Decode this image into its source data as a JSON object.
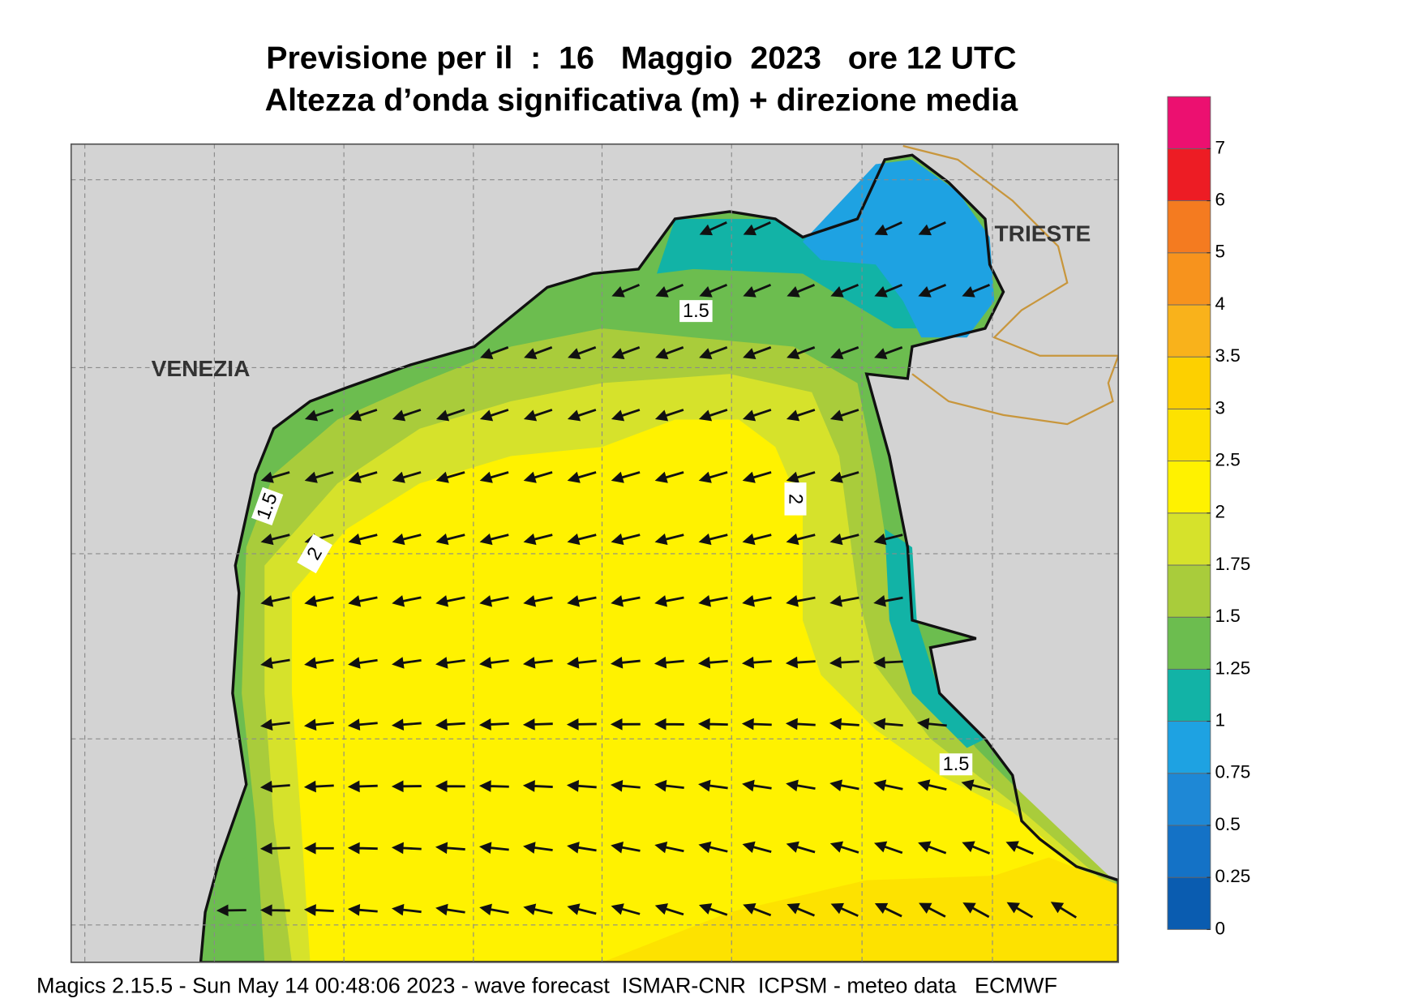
{
  "title": [
    "Previsione per il  :  16   Maggio  2023   ore 12 UTC",
    "Altezza d’onda significativa (m) + direzione media"
  ],
  "places": [
    "VENEZIA",
    "TRIESTE"
  ],
  "contour_labels": [
    "1.5",
    "1.5",
    "1.5",
    "2",
    "2"
  ],
  "colorbar": {
    "levels": [
      0,
      0.25,
      0.5,
      0.75,
      1,
      1.25,
      1.5,
      1.75,
      2,
      2.5,
      3,
      3.5,
      4,
      5,
      6,
      7
    ],
    "colors": [
      "#0a5cb0",
      "#1472c6",
      "#1e88d6",
      "#1ea2e2",
      "#12b3a6",
      "#6cbd4f",
      "#a9cc3b",
      "#d6e22b",
      "#fff200",
      "#fde200",
      "#fdd000",
      "#f9b21b",
      "#f7931d",
      "#f47b20",
      "#ed1c24",
      "#ec1070"
    ]
  },
  "footer": "Magics 2.15.5 - Sun May 14 00:48:06 2023 - wave forecast  ISMAR-CNR  ICPSM - meteo data   ECMWF"
}
